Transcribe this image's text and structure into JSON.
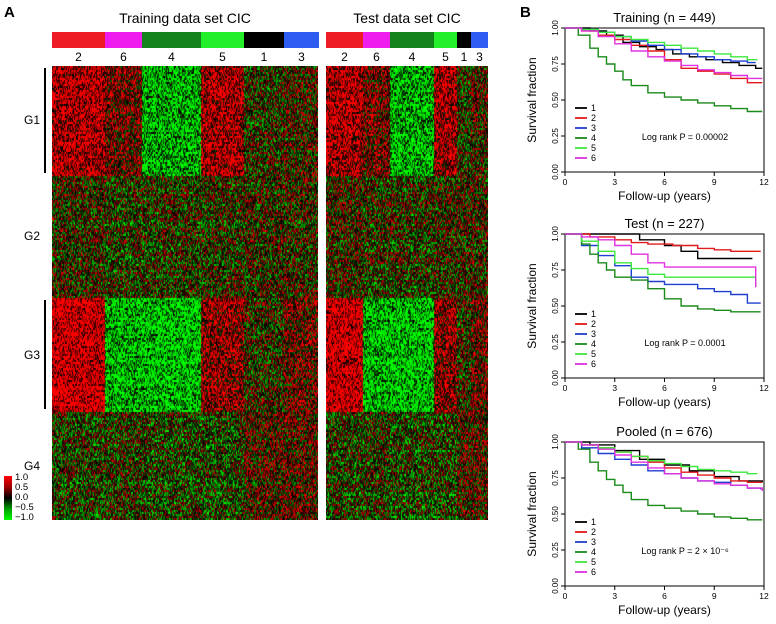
{
  "panel_a": {
    "letter": "A",
    "training_title": "Training data set CIC",
    "test_title": "Test data set CIC",
    "training_clusters": [
      {
        "label": "2",
        "color": "#ee1c25",
        "size": 68
      },
      {
        "label": "6",
        "color": "#ee1ced",
        "size": 48
      },
      {
        "label": "4",
        "color": "#12821a",
        "size": 76
      },
      {
        "label": "5",
        "color": "#22ee2a",
        "size": 55
      },
      {
        "label": "1",
        "color": "#000000",
        "size": 52
      },
      {
        "label": "3",
        "color": "#2f5cf0",
        "size": 45
      }
    ],
    "test_clusters": [
      {
        "label": "2",
        "color": "#ee1c25",
        "size": 30
      },
      {
        "label": "6",
        "color": "#ee1ced",
        "size": 22
      },
      {
        "label": "4",
        "color": "#12821a",
        "size": 36
      },
      {
        "label": "5",
        "color": "#22ee2a",
        "size": 19
      },
      {
        "label": "1",
        "color": "#000000",
        "size": 11
      },
      {
        "label": "3",
        "color": "#2f5cf0",
        "size": 14
      }
    ],
    "gene_groups": [
      {
        "label": "G1",
        "rows": 22
      },
      {
        "label": "G2",
        "rows": 25
      },
      {
        "label": "G3",
        "rows": 23
      },
      {
        "label": "G4",
        "rows": 22
      }
    ],
    "pattern": [
      [
        0.75,
        0.35,
        -0.75,
        0.7,
        -0.05,
        0.1
      ],
      [
        0.05,
        -0.05,
        -0.05,
        0.0,
        0.05,
        0.05
      ],
      [
        0.95,
        -0.8,
        -0.85,
        0.55,
        0.0,
        0.3
      ],
      [
        -0.1,
        -0.05,
        -0.15,
        -0.15,
        0.15,
        0.2
      ]
    ],
    "legend": {
      "labels": [
        "1.0",
        "0.5",
        "0.0",
        "−0.5",
        "−1.0"
      ],
      "colors": [
        "#ff0000",
        "#a00000",
        "#000000",
        "#00a000",
        "#00ff00"
      ]
    }
  },
  "panel_b": {
    "letter": "B"
  },
  "chart_data": [
    {
      "type": "line",
      "title": "Training (n = 449)",
      "xlabel": "Follow-up (years)",
      "ylabel": "Survival fraction",
      "xlim": [
        0,
        12
      ],
      "ylim": [
        0,
        1
      ],
      "xticks": [
        "0",
        "3",
        "6",
        "9",
        "12"
      ],
      "yticks": [
        "0.00",
        "0.25",
        "0.50",
        "0.75",
        "1.00"
      ],
      "annotation": "Log rank P = 0.00002",
      "series": [
        {
          "name": "1",
          "color": "#000000",
          "x": [
            0,
            1.5,
            2.5,
            3.5,
            4.5,
            5.5,
            6.5,
            7.5,
            8.5,
            9.5,
            10.5,
            11.5,
            11.9
          ],
          "y": [
            1,
            0.98,
            0.95,
            0.9,
            0.87,
            0.85,
            0.82,
            0.8,
            0.78,
            0.76,
            0.74,
            0.72,
            0.72
          ]
        },
        {
          "name": "2",
          "color": "#e31a1c",
          "x": [
            0,
            1,
            2,
            3,
            4,
            5,
            6,
            7,
            8,
            9,
            10,
            11,
            11.9
          ],
          "y": [
            1,
            0.98,
            0.95,
            0.92,
            0.88,
            0.84,
            0.78,
            0.72,
            0.7,
            0.68,
            0.65,
            0.62,
            0.62
          ]
        },
        {
          "name": "3",
          "color": "#1f3fd0",
          "x": [
            0,
            1,
            2,
            3,
            4,
            5,
            6,
            7,
            8,
            9,
            10,
            11,
            11.5
          ],
          "y": [
            1,
            0.99,
            0.97,
            0.94,
            0.91,
            0.88,
            0.85,
            0.82,
            0.8,
            0.78,
            0.77,
            0.76,
            0.76
          ]
        },
        {
          "name": "4",
          "color": "#1a8a1a",
          "x": [
            0,
            0.8,
            1.5,
            2,
            2.5,
            3,
            3.5,
            4,
            5,
            6,
            7,
            8,
            9,
            10,
            11,
            11.9
          ],
          "y": [
            1,
            0.95,
            0.86,
            0.8,
            0.75,
            0.7,
            0.64,
            0.6,
            0.55,
            0.52,
            0.5,
            0.48,
            0.46,
            0.44,
            0.42,
            0.42
          ]
        },
        {
          "name": "5",
          "color": "#3ee83e",
          "x": [
            0,
            1,
            2,
            3,
            4,
            5,
            6,
            7,
            8,
            9,
            10,
            11,
            11.6
          ],
          "y": [
            1,
            0.99,
            0.97,
            0.94,
            0.92,
            0.9,
            0.88,
            0.86,
            0.84,
            0.82,
            0.8,
            0.78,
            0.78
          ]
        },
        {
          "name": "6",
          "color": "#e030e0",
          "x": [
            0,
            1,
            2,
            3,
            4,
            5,
            6,
            7,
            8,
            9,
            10,
            11,
            11.9
          ],
          "y": [
            1,
            0.98,
            0.94,
            0.89,
            0.84,
            0.8,
            0.77,
            0.74,
            0.71,
            0.69,
            0.67,
            0.65,
            0.65
          ]
        }
      ]
    },
    {
      "type": "line",
      "title": "Test (n = 227)",
      "xlabel": "Follow-up (years)",
      "ylabel": "Survival fraction",
      "xlim": [
        0,
        12
      ],
      "ylim": [
        0,
        1
      ],
      "xticks": [
        "0",
        "3",
        "6",
        "9",
        "12"
      ],
      "yticks": [
        "0.00",
        "0.25",
        "0.50",
        "0.75",
        "1.00"
      ],
      "annotation": "Log rank P = 0.0001",
      "series": [
        {
          "name": "1",
          "color": "#000000",
          "x": [
            0,
            2,
            4.5,
            6,
            7,
            8,
            11.3
          ],
          "y": [
            1,
            1,
            0.96,
            0.92,
            0.88,
            0.83,
            0.83
          ]
        },
        {
          "name": "2",
          "color": "#e31a1c",
          "x": [
            0,
            1.5,
            3,
            4,
            5,
            6.5,
            8,
            9,
            10,
            11.8
          ],
          "y": [
            1,
            0.98,
            0.96,
            0.94,
            0.93,
            0.92,
            0.9,
            0.89,
            0.88,
            0.88
          ]
        },
        {
          "name": "3",
          "color": "#1f3fd0",
          "x": [
            0,
            1,
            2,
            3,
            4,
            5,
            6,
            7,
            8,
            9,
            10,
            11,
            11.8
          ],
          "y": [
            1,
            0.92,
            0.85,
            0.78,
            0.7,
            0.67,
            0.65,
            0.65,
            0.62,
            0.6,
            0.58,
            0.52,
            0.52
          ]
        },
        {
          "name": "4",
          "color": "#1a8a1a",
          "x": [
            0,
            1,
            1.5,
            2,
            2.5,
            3,
            4,
            5,
            6,
            7,
            8,
            9,
            10,
            11,
            11.8
          ],
          "y": [
            1,
            0.93,
            0.86,
            0.8,
            0.75,
            0.7,
            0.68,
            0.62,
            0.55,
            0.5,
            0.48,
            0.47,
            0.46,
            0.46,
            0.46
          ]
        },
        {
          "name": "5",
          "color": "#3ee83e",
          "x": [
            0,
            1,
            2,
            3,
            4,
            5,
            6,
            11,
            11.5
          ],
          "y": [
            1,
            0.95,
            0.88,
            0.8,
            0.76,
            0.72,
            0.7,
            0.7,
            0.63
          ]
        },
        {
          "name": "6",
          "color": "#e030e0",
          "x": [
            0,
            1,
            2,
            3,
            4,
            5,
            6,
            11,
            11.5
          ],
          "y": [
            1,
            0.98,
            0.96,
            0.92,
            0.86,
            0.8,
            0.77,
            0.77,
            0.63
          ]
        }
      ]
    },
    {
      "type": "line",
      "title": "Pooled (n = 676)",
      "xlabel": "Follow-up (years)",
      "ylabel": "Survival fraction",
      "xlim": [
        0,
        12
      ],
      "ylim": [
        0,
        1
      ],
      "xticks": [
        "0",
        "3",
        "6",
        "9",
        "12"
      ],
      "yticks": [
        "0.00",
        "0.25",
        "0.50",
        "0.75",
        "1.00"
      ],
      "annotation": "Log rank P = 2 × 10⁻⁶",
      "series": [
        {
          "name": "1",
          "color": "#000000",
          "x": [
            0,
            1.5,
            3,
            4.5,
            6,
            7.5,
            9,
            10.5,
            11.9
          ],
          "y": [
            1,
            0.98,
            0.94,
            0.88,
            0.84,
            0.8,
            0.76,
            0.73,
            0.72
          ]
        },
        {
          "name": "2",
          "color": "#e31a1c",
          "x": [
            0,
            1,
            2,
            3,
            4,
            5,
            6,
            7,
            8,
            9,
            10,
            11,
            11.9
          ],
          "y": [
            1,
            0.98,
            0.96,
            0.93,
            0.9,
            0.86,
            0.82,
            0.79,
            0.77,
            0.75,
            0.73,
            0.72,
            0.72
          ]
        },
        {
          "name": "3",
          "color": "#1f3fd0",
          "x": [
            0,
            1,
            2,
            3,
            4,
            5,
            6,
            7,
            8,
            9,
            10,
            11,
            11.8
          ],
          "y": [
            1,
            0.96,
            0.92,
            0.88,
            0.84,
            0.8,
            0.78,
            0.75,
            0.73,
            0.72,
            0.7,
            0.68,
            0.67
          ]
        },
        {
          "name": "4",
          "color": "#1a8a1a",
          "x": [
            0,
            0.8,
            1.5,
            2,
            2.5,
            3,
            3.5,
            4,
            5,
            6,
            7,
            8,
            9,
            10,
            11,
            11.9
          ],
          "y": [
            1,
            0.95,
            0.86,
            0.8,
            0.74,
            0.7,
            0.65,
            0.6,
            0.56,
            0.54,
            0.52,
            0.5,
            0.48,
            0.47,
            0.46,
            0.46
          ]
        },
        {
          "name": "5",
          "color": "#3ee83e",
          "x": [
            0,
            1,
            2,
            3,
            4,
            5,
            6,
            7,
            8,
            9,
            10,
            11,
            11.6
          ],
          "y": [
            1,
            0.98,
            0.96,
            0.93,
            0.9,
            0.87,
            0.85,
            0.83,
            0.81,
            0.8,
            0.79,
            0.78,
            0.78
          ]
        },
        {
          "name": "6",
          "color": "#e030e0",
          "x": [
            0,
            1,
            2,
            3,
            4,
            5,
            6,
            7,
            8,
            9,
            10,
            11,
            11.9
          ],
          "y": [
            1,
            0.98,
            0.95,
            0.91,
            0.86,
            0.82,
            0.78,
            0.75,
            0.73,
            0.71,
            0.7,
            0.68,
            0.66
          ]
        }
      ]
    }
  ]
}
